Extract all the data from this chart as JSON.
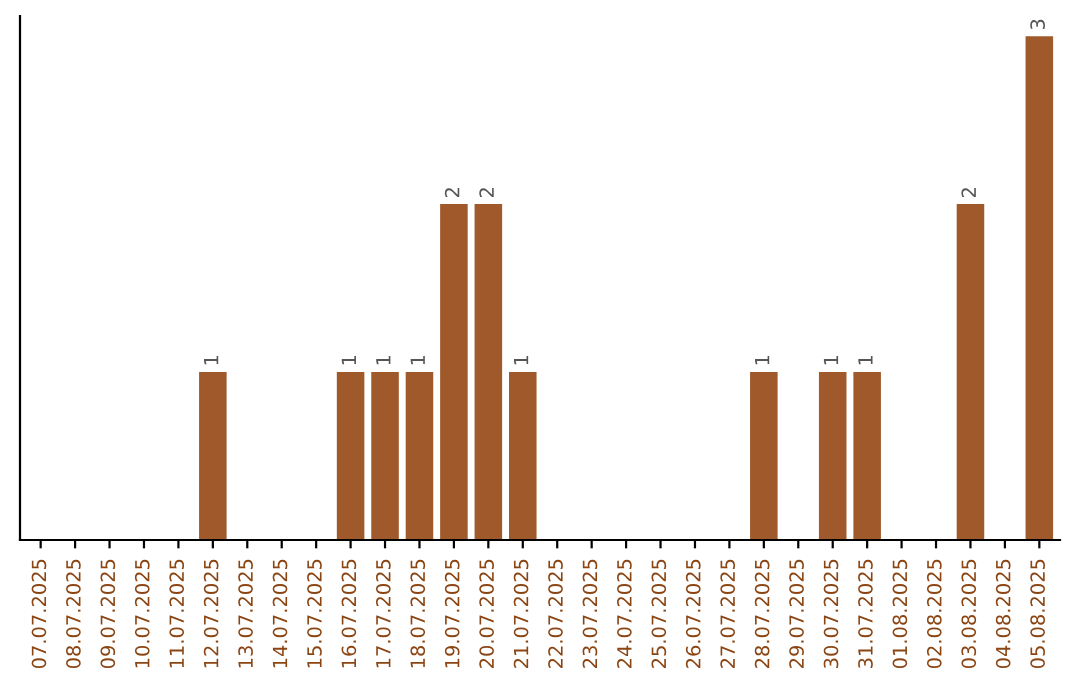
{
  "chart_data": {
    "type": "bar",
    "categories": [
      "07.07.2025",
      "08.07.2025",
      "09.07.2025",
      "10.07.2025",
      "11.07.2025",
      "12.07.2025",
      "13.07.2025",
      "14.07.2025",
      "15.07.2025",
      "16.07.2025",
      "17.07.2025",
      "18.07.2025",
      "19.07.2025",
      "20.07.2025",
      "21.07.2025",
      "22.07.2025",
      "23.07.2025",
      "24.07.2025",
      "25.07.2025",
      "26.07.2025",
      "27.07.2025",
      "28.07.2025",
      "29.07.2025",
      "30.07.2025",
      "31.07.2025",
      "01.08.2025",
      "02.08.2025",
      "03.08.2025",
      "04.08.2025",
      "05.08.2025"
    ],
    "values": [
      0,
      0,
      0,
      0,
      0,
      1,
      0,
      0,
      0,
      1,
      1,
      1,
      2,
      2,
      1,
      0,
      0,
      0,
      0,
      0,
      0,
      1,
      0,
      1,
      1,
      0,
      0,
      2,
      0,
      3
    ],
    "value_labels": [
      null,
      null,
      null,
      null,
      null,
      "1",
      null,
      null,
      null,
      "1",
      "1",
      "1",
      "2",
      "2",
      "1",
      null,
      null,
      null,
      null,
      null,
      null,
      "1",
      null,
      "1",
      "1",
      null,
      null,
      "2",
      null,
      "3"
    ],
    "color": "#a0592b",
    "tick_labels": "x"
  }
}
